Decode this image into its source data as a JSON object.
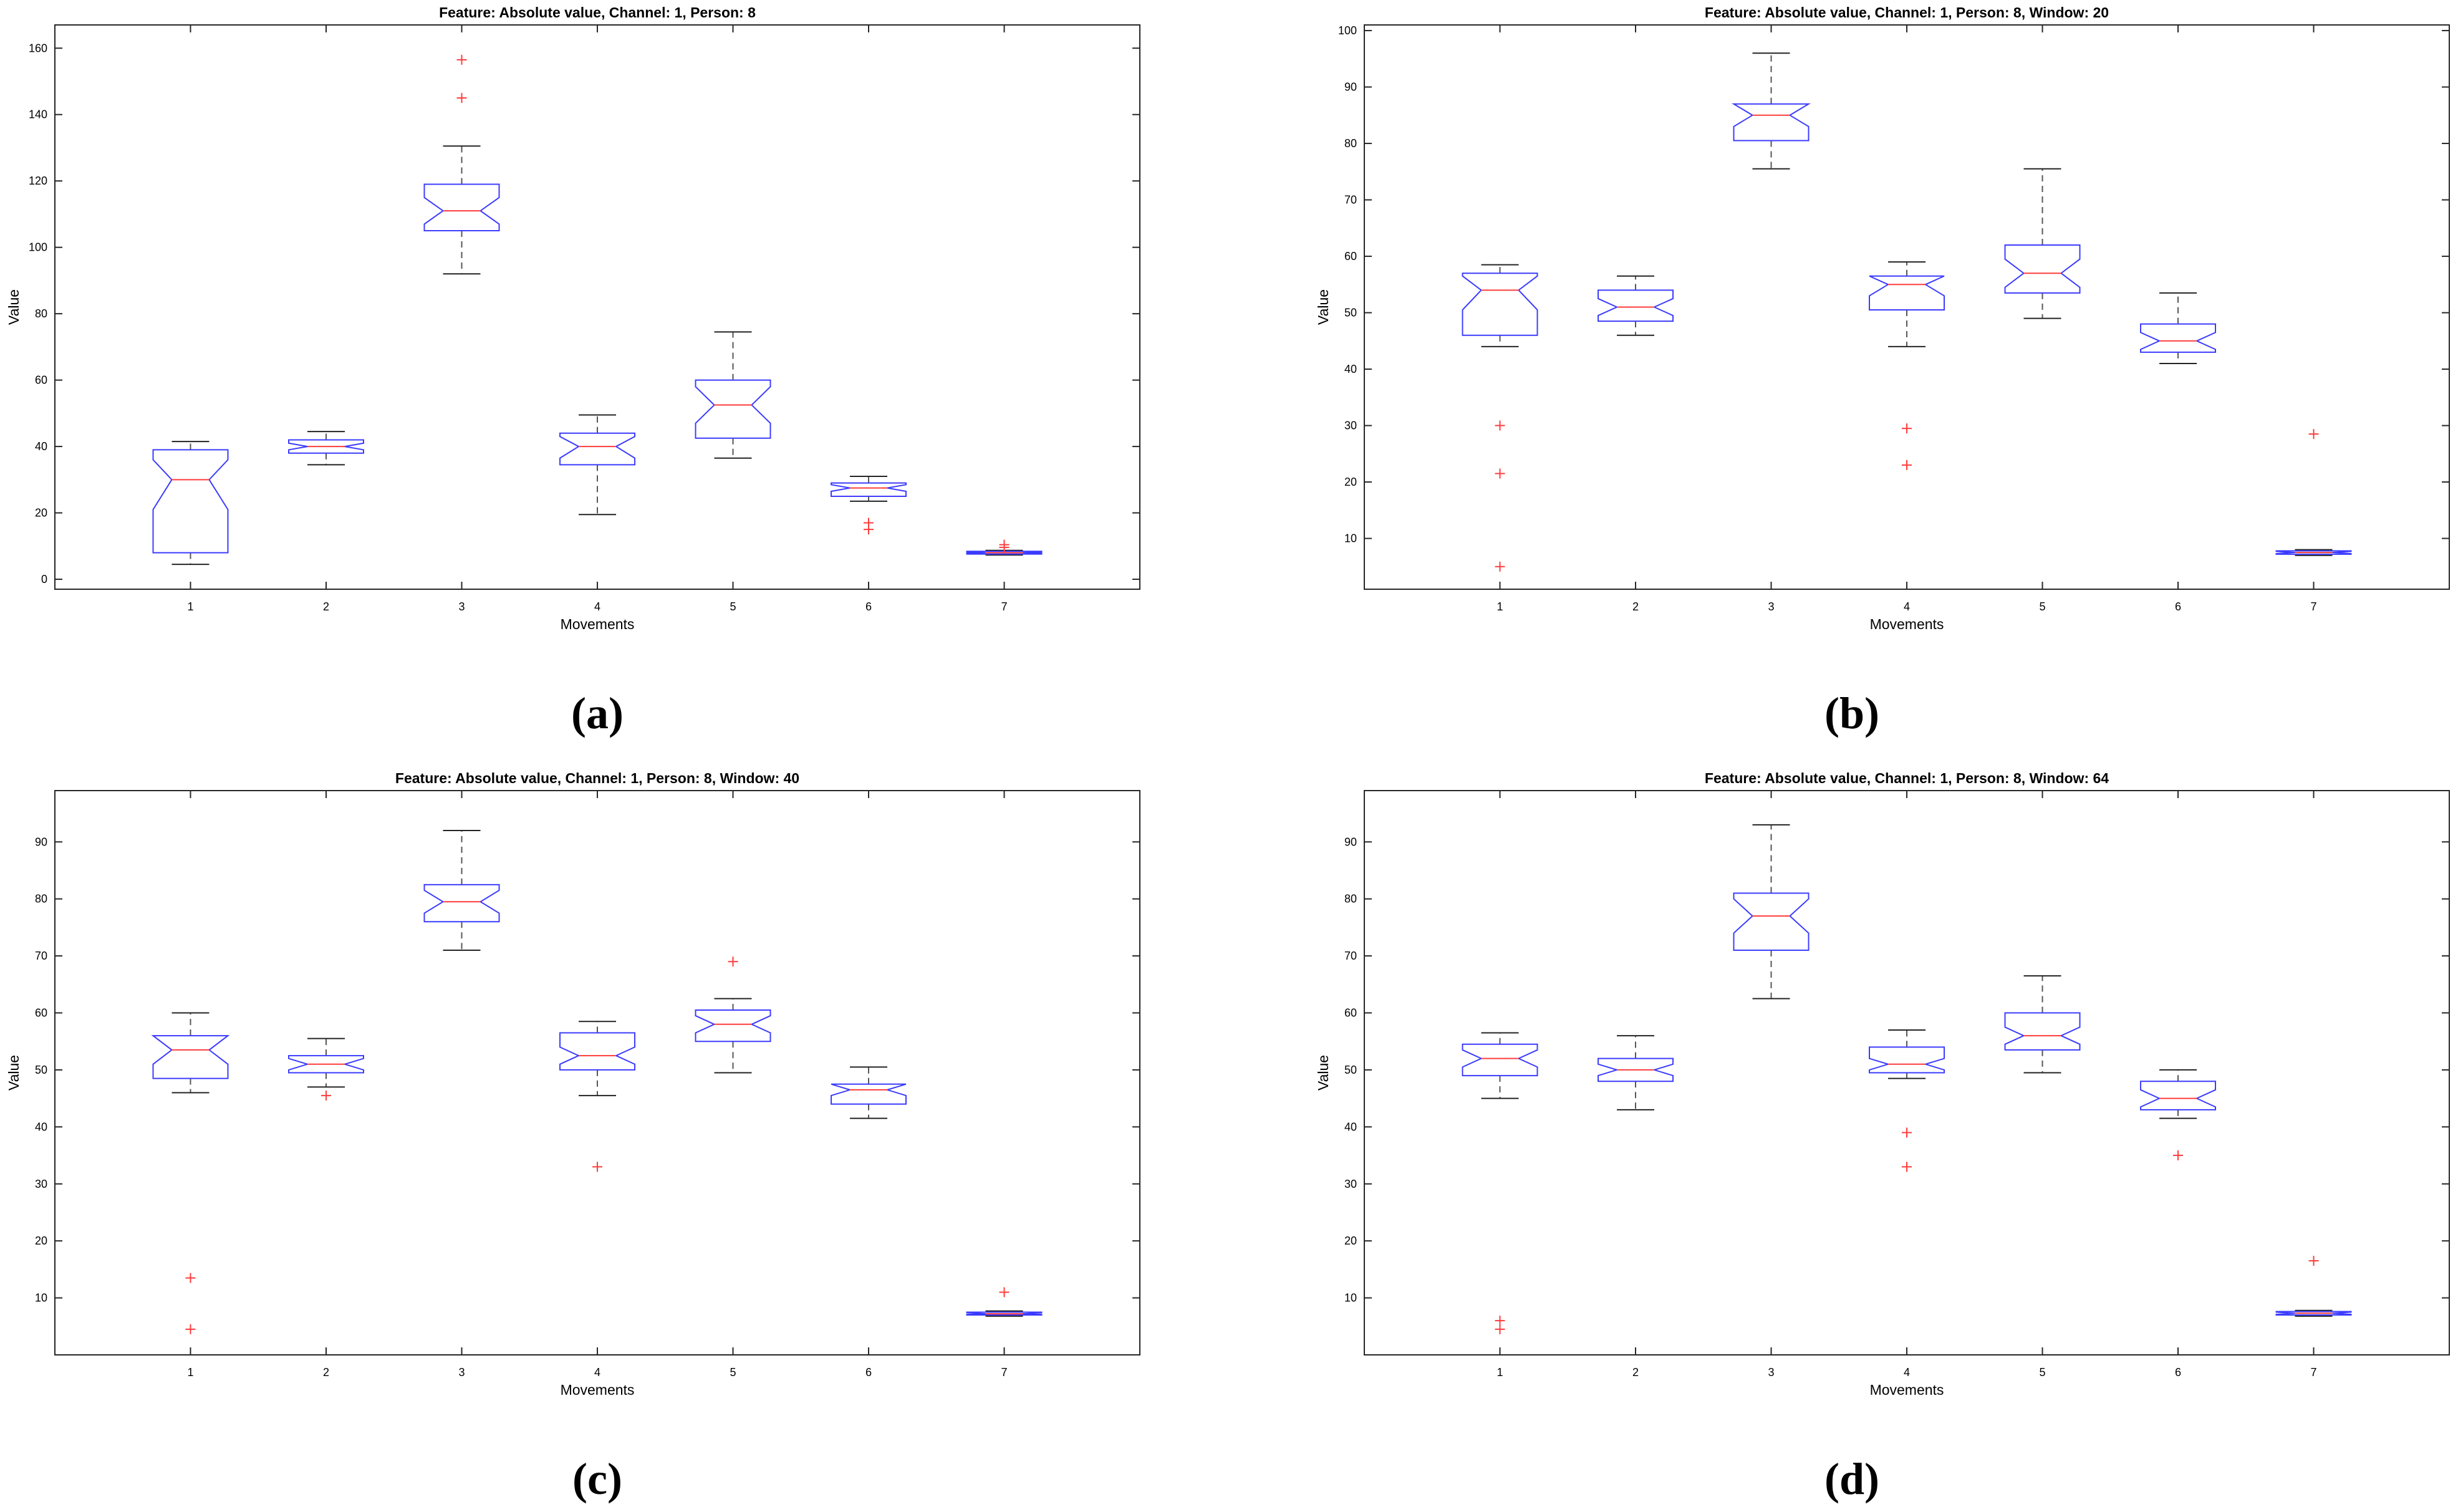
{
  "chart_data": [
    {
      "panel": "(a)",
      "type": "box",
      "title": "Feature: Absolute value, Channel: 1, Person: 8",
      "xlabel": "Movements",
      "ylabel": "Value",
      "ylim": [
        -3,
        167
      ],
      "yticks": [
        0,
        20,
        40,
        60,
        80,
        100,
        120,
        140,
        160
      ],
      "categories": [
        "1",
        "2",
        "3",
        "4",
        "5",
        "6",
        "7"
      ],
      "boxes": [
        {
          "min": 4.5,
          "q1": 8,
          "median": 30,
          "q3": 39,
          "max": 41.5,
          "notch_lo": 21,
          "notch_hi": 36,
          "outliers": []
        },
        {
          "min": 34.5,
          "q1": 38,
          "median": 40,
          "q3": 42,
          "max": 44.5,
          "notch_lo": 39,
          "notch_hi": 41,
          "outliers": []
        },
        {
          "min": 92,
          "q1": 105,
          "median": 111,
          "q3": 119,
          "max": 130.5,
          "notch_lo": 107,
          "notch_hi": 115,
          "outliers": [
            145,
            156.5
          ]
        },
        {
          "min": 19.5,
          "q1": 34.5,
          "median": 40,
          "q3": 44,
          "max": 49.5,
          "notch_lo": 36.5,
          "notch_hi": 43,
          "outliers": []
        },
        {
          "min": 36.5,
          "q1": 42.5,
          "median": 52.5,
          "q3": 60,
          "max": 74.5,
          "notch_lo": 47,
          "notch_hi": 58,
          "outliers": []
        },
        {
          "min": 23.5,
          "q1": 25,
          "median": 27.5,
          "q3": 29,
          "max": 31,
          "notch_lo": 26.5,
          "notch_hi": 28.5,
          "outliers": [
            15,
            17
          ]
        },
        {
          "min": 7.3,
          "q1": 7.6,
          "median": 8,
          "q3": 8.4,
          "max": 8.7,
          "notch_lo": 7.8,
          "notch_hi": 8.2,
          "outliers": [
            9.6,
            10.4
          ]
        }
      ]
    },
    {
      "panel": "(b)",
      "type": "box",
      "title": "Feature: Absolute value, Channel: 1, Person: 8, Window: 20",
      "xlabel": "Movements",
      "ylabel": "Value",
      "ylim": [
        1,
        101
      ],
      "yticks": [
        10,
        20,
        30,
        40,
        50,
        60,
        70,
        80,
        90,
        100
      ],
      "categories": [
        "1",
        "2",
        "3",
        "4",
        "5",
        "6",
        "7"
      ],
      "boxes": [
        {
          "min": 44,
          "q1": 46,
          "median": 54,
          "q3": 57,
          "max": 58.5,
          "notch_lo": 50.5,
          "notch_hi": 56.5,
          "outliers": [
            5,
            21.5,
            30
          ]
        },
        {
          "min": 46,
          "q1": 48.5,
          "median": 51,
          "q3": 54,
          "max": 56.5,
          "notch_lo": 49.5,
          "notch_hi": 52.5,
          "outliers": []
        },
        {
          "min": 75.5,
          "q1": 80.5,
          "median": 85,
          "q3": 87,
          "max": 96,
          "notch_lo": 83,
          "notch_hi": 87,
          "outliers": []
        },
        {
          "min": 44,
          "q1": 50.5,
          "median": 55,
          "q3": 56.5,
          "max": 59,
          "notch_lo": 53,
          "notch_hi": 56.5,
          "outliers": [
            23,
            29.5
          ]
        },
        {
          "min": 49,
          "q1": 53.5,
          "median": 57,
          "q3": 62,
          "max": 75.5,
          "notch_lo": 54.5,
          "notch_hi": 59.5,
          "outliers": []
        },
        {
          "min": 41,
          "q1": 43,
          "median": 45,
          "q3": 48,
          "max": 53.5,
          "notch_lo": 43.5,
          "notch_hi": 46.5,
          "outliers": []
        },
        {
          "min": 7,
          "q1": 7.2,
          "median": 7.5,
          "q3": 7.8,
          "max": 8,
          "notch_lo": 7.3,
          "notch_hi": 7.7,
          "outliers": [
            28.5
          ]
        }
      ]
    },
    {
      "panel": "(c)",
      "type": "box",
      "title": "Feature: Absolute value, Channel: 1, Person: 8, Window: 40",
      "xlabel": "Movements",
      "ylabel": "Value",
      "ylim": [
        0,
        99
      ],
      "yticks": [
        10,
        20,
        30,
        40,
        50,
        60,
        70,
        80,
        90
      ],
      "categories": [
        "1",
        "2",
        "3",
        "4",
        "5",
        "6",
        "7"
      ],
      "boxes": [
        {
          "min": 46,
          "q1": 48.5,
          "median": 53.5,
          "q3": 56,
          "max": 60,
          "notch_lo": 51,
          "notch_hi": 56,
          "outliers": [
            4.5,
            13.5
          ]
        },
        {
          "min": 47,
          "q1": 49.5,
          "median": 51,
          "q3": 52.5,
          "max": 55.5,
          "notch_lo": 50,
          "notch_hi": 52,
          "outliers": [
            45.5
          ]
        },
        {
          "min": 71,
          "q1": 76,
          "median": 79.5,
          "q3": 82.5,
          "max": 92,
          "notch_lo": 77.5,
          "notch_hi": 81.5,
          "outliers": []
        },
        {
          "min": 45.5,
          "q1": 50,
          "median": 52.5,
          "q3": 56.5,
          "max": 58.5,
          "notch_lo": 51,
          "notch_hi": 54,
          "outliers": [
            33
          ]
        },
        {
          "min": 49.5,
          "q1": 55,
          "median": 58,
          "q3": 60.5,
          "max": 62.5,
          "notch_lo": 56.5,
          "notch_hi": 59.5,
          "outliers": [
            69
          ]
        },
        {
          "min": 41.5,
          "q1": 44,
          "median": 46.5,
          "q3": 47.5,
          "max": 50.5,
          "notch_lo": 45.5,
          "notch_hi": 47.5,
          "outliers": []
        },
        {
          "min": 6.8,
          "q1": 7,
          "median": 7.2,
          "q3": 7.5,
          "max": 7.7,
          "notch_lo": 7.1,
          "notch_hi": 7.4,
          "outliers": [
            11
          ]
        }
      ]
    },
    {
      "panel": "(d)",
      "type": "box",
      "title": "Feature: Absolute value, Channel: 1, Person: 8, Window: 64",
      "xlabel": "Movements",
      "ylabel": "Value",
      "ylim": [
        0,
        99
      ],
      "yticks": [
        10,
        20,
        30,
        40,
        50,
        60,
        70,
        80,
        90
      ],
      "categories": [
        "1",
        "2",
        "3",
        "4",
        "5",
        "6",
        "7"
      ],
      "boxes": [
        {
          "min": 45,
          "q1": 49,
          "median": 52,
          "q3": 54.5,
          "max": 56.5,
          "notch_lo": 50.5,
          "notch_hi": 53.5,
          "outliers": [
            4.5,
            6
          ]
        },
        {
          "min": 43,
          "q1": 48,
          "median": 50,
          "q3": 52,
          "max": 56,
          "notch_lo": 49,
          "notch_hi": 51,
          "outliers": []
        },
        {
          "min": 62.5,
          "q1": 71,
          "median": 77,
          "q3": 81,
          "max": 93,
          "notch_lo": 74,
          "notch_hi": 80,
          "outliers": []
        },
        {
          "min": 48.5,
          "q1": 49.5,
          "median": 51,
          "q3": 54,
          "max": 57,
          "notch_lo": 50,
          "notch_hi": 52,
          "outliers": [
            33,
            39
          ]
        },
        {
          "min": 49.5,
          "q1": 53.5,
          "median": 56,
          "q3": 60,
          "max": 66.5,
          "notch_lo": 54.5,
          "notch_hi": 57.5,
          "outliers": []
        },
        {
          "min": 41.5,
          "q1": 43,
          "median": 45,
          "q3": 48,
          "max": 50,
          "notch_lo": 43.5,
          "notch_hi": 46.5,
          "outliers": [
            35
          ]
        },
        {
          "min": 6.8,
          "q1": 7,
          "median": 7.3,
          "q3": 7.6,
          "max": 7.8,
          "notch_lo": 7.1,
          "notch_hi": 7.5,
          "outliers": [
            16.5
          ]
        }
      ]
    }
  ]
}
